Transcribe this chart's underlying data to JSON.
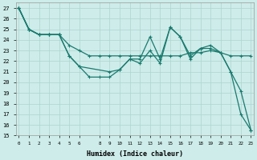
{
  "xlabel": "Humidex (Indice chaleur)",
  "bg_color": "#cdecea",
  "grid_color": "#aed4d0",
  "line_color": "#1a7a6e",
  "line1_x": [
    0,
    1,
    2,
    3,
    4,
    5,
    6,
    7,
    8,
    9,
    10,
    11,
    12,
    13,
    14,
    15,
    16,
    17,
    18,
    19,
    20,
    21,
    22,
    23
  ],
  "line1_y": [
    27,
    25,
    24.5,
    24.5,
    24.5,
    22.5,
    21.5,
    20.5,
    20.5,
    20.5,
    21.2,
    22.2,
    22.2,
    24.3,
    22.2,
    25.2,
    24.3,
    22.2,
    23.2,
    23.2,
    22.8,
    21.0,
    19.2,
    15.5
  ],
  "line2_x": [
    0,
    1,
    2,
    3,
    4,
    5,
    6,
    9,
    10,
    11,
    12,
    13,
    14,
    15,
    16,
    17,
    18,
    19,
    20,
    21,
    22,
    23
  ],
  "line2_y": [
    27,
    25,
    24.5,
    24.5,
    24.5,
    22.5,
    21.5,
    21.0,
    21.2,
    22.2,
    21.8,
    23.0,
    21.8,
    25.2,
    24.3,
    22.5,
    23.2,
    23.5,
    22.8,
    21.0,
    17.0,
    15.5
  ],
  "line3_x": [
    0,
    1,
    2,
    3,
    4,
    5,
    6,
    7,
    8,
    9,
    10,
    11,
    12,
    13,
    14,
    15,
    16,
    17,
    18,
    19,
    20,
    21,
    22,
    23
  ],
  "line3_y": [
    27,
    25,
    24.5,
    24.5,
    24.5,
    23.5,
    23.0,
    22.5,
    22.5,
    22.5,
    22.5,
    22.5,
    22.5,
    22.5,
    22.5,
    22.5,
    22.5,
    22.8,
    22.8,
    23.0,
    22.8,
    22.5,
    22.5,
    22.5
  ],
  "line4_x": [
    0,
    1,
    2,
    3,
    4
  ],
  "line4_y": [
    27,
    25,
    24.5,
    24.5,
    24.5
  ],
  "xlim": [
    -0.3,
    23.3
  ],
  "ylim": [
    15,
    27.5
  ],
  "yticks": [
    15,
    16,
    17,
    18,
    19,
    20,
    21,
    22,
    23,
    24,
    25,
    26,
    27
  ],
  "xtick_positions": [
    0,
    1,
    2,
    3,
    4,
    5,
    6,
    8,
    9,
    10,
    11,
    12,
    13,
    14,
    15,
    16,
    17,
    18,
    19,
    20,
    21,
    22,
    23
  ],
  "xtick_labels": [
    "0",
    "1",
    "2",
    "3",
    "4",
    "5",
    "6",
    "8",
    "9",
    "10",
    "11",
    "12",
    "13",
    "14",
    "15",
    "16",
    "17",
    "18",
    "19",
    "20",
    "21",
    "22",
    "23"
  ]
}
